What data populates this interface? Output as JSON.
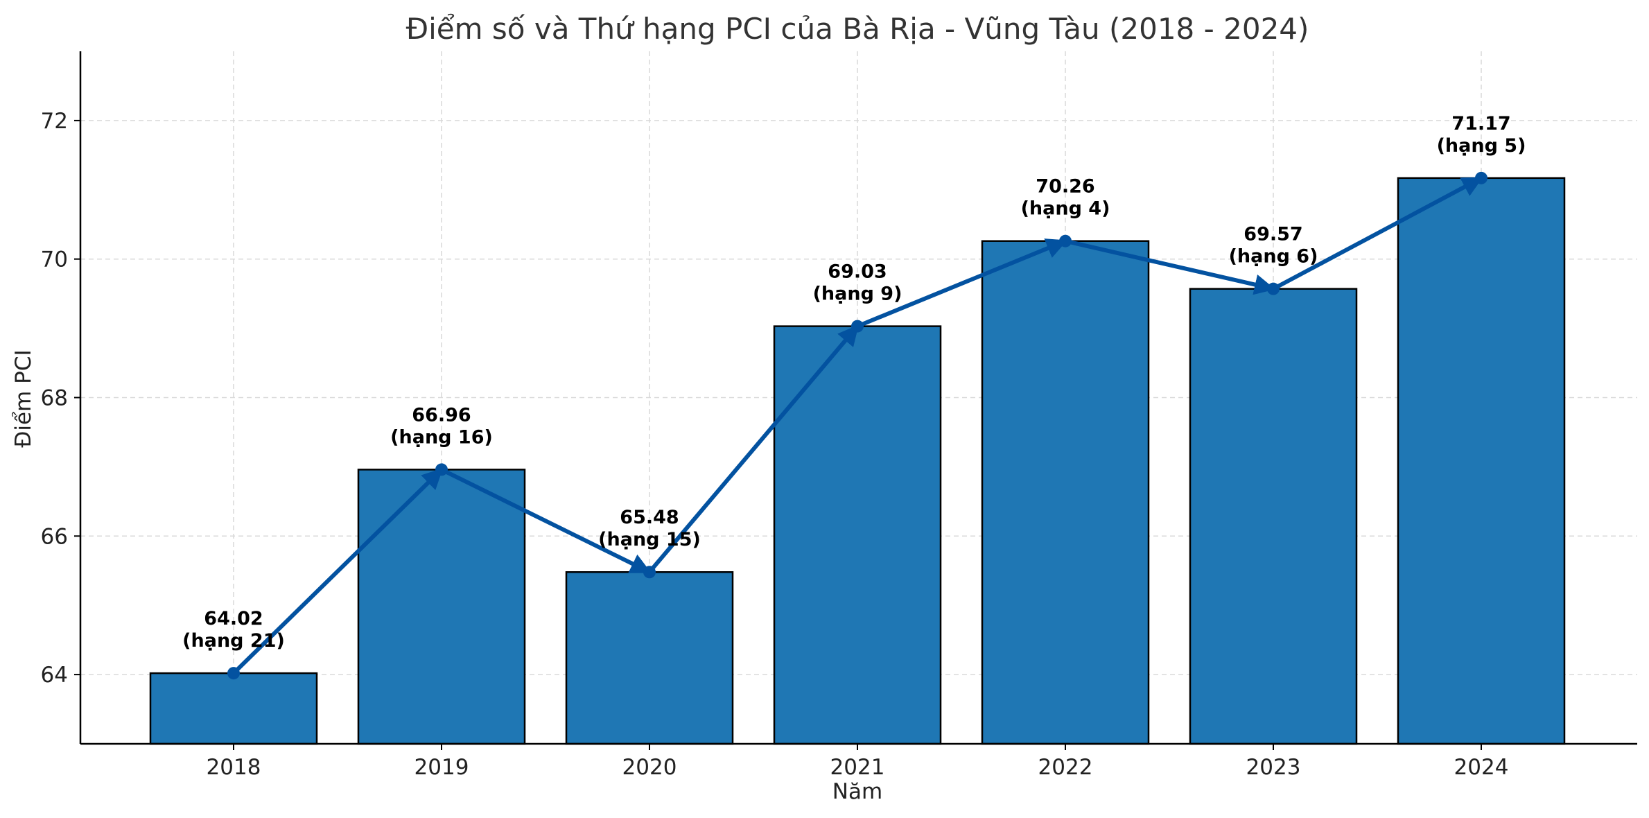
{
  "chart_data": {
    "type": "bar",
    "title": "Điểm số và Thứ hạng PCI của Bà Rịa - Vũng Tàu (2018 - 2024)",
    "xlabel": "Năm",
    "ylabel": "Điểm PCI",
    "categories": [
      "2018",
      "2019",
      "2020",
      "2021",
      "2022",
      "2023",
      "2024"
    ],
    "values": [
      64.02,
      66.96,
      65.48,
      69.03,
      70.26,
      69.57,
      71.17
    ],
    "value_labels": [
      "64.02",
      "66.96",
      "65.48",
      "69.03",
      "70.26",
      "69.57",
      "71.17"
    ],
    "rank_labels": [
      "(hạng 21)",
      "(hạng 16)",
      "(hạng 15)",
      "(hạng 9)",
      "(hạng 4)",
      "(hạng 6)",
      "(hạng 5)"
    ],
    "overlay_line": {
      "type": "line",
      "marker": "circle",
      "arrows": true
    },
    "ylim": [
      63,
      73
    ],
    "yticks": [
      "64",
      "66",
      "68",
      "70",
      "72"
    ],
    "grid": true,
    "legend": "none",
    "colors": {
      "bar": "#1f77b4",
      "bar_edge": "#000000",
      "line": "#0352a0",
      "grid": "#d9d9d9",
      "axis": "#000000"
    }
  }
}
